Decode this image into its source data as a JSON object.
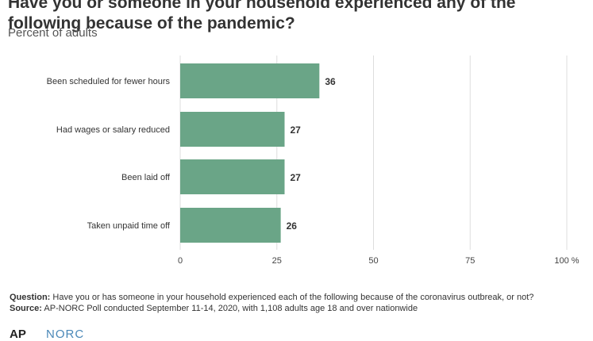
{
  "header": {
    "title": "Have you or someone in your household experienced any of the following because of the pandemic?",
    "subtitle": "Percent of adults"
  },
  "footer": {
    "question_label": "Question:",
    "question_text": " Have you or has someone in your household experienced each of the following because of the coronavirus outbreak, or not?",
    "source_label": "Source:",
    "source_text": " AP-NORC Poll conducted September 11-14, 2020, with 1,108 adults age 18 and over nationwide"
  },
  "logos": {
    "ap": "AP",
    "norc": "NORC"
  },
  "colors": {
    "bar": "#6aa587",
    "grid": "#dddddd",
    "text": "#333333"
  },
  "chart_data": {
    "type": "bar",
    "orientation": "horizontal",
    "categories": [
      "Been scheduled for fewer hours",
      "Had wages or salary reduced",
      "Been laid off",
      "Taken unpaid time off"
    ],
    "values": [
      36,
      27,
      27,
      26
    ],
    "xlim": [
      0,
      100
    ],
    "ticks": [
      0,
      25,
      50,
      75,
      100
    ],
    "tick_labels": [
      "0",
      "25",
      "50",
      "75",
      "100"
    ],
    "unit_suffix": "%",
    "grid": true
  }
}
